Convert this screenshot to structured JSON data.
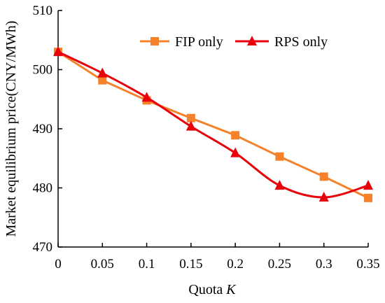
{
  "chart_data": {
    "type": "line",
    "title": "",
    "xlabel": "Quota ",
    "xlabel_italic": "K",
    "ylabel": "Market equilibrium price(CNY/MWh)",
    "x": [
      0,
      0.05,
      0.1,
      0.15,
      0.2,
      0.25,
      0.3,
      0.35
    ],
    "x_tick_labels": [
      "0",
      "0.05",
      "0.1",
      "0.15",
      "0.2",
      "0.25",
      "0.3",
      "0.35"
    ],
    "ylim": [
      470,
      510
    ],
    "y_ticks": [
      470,
      480,
      490,
      500,
      510
    ],
    "y_tick_labels": [
      "470",
      "480",
      "490",
      "500",
      "510"
    ],
    "grid": false,
    "legend_position": "top-right",
    "series": [
      {
        "name": "FIP only",
        "color": "#F5822A",
        "marker": "square",
        "smooth": false,
        "values": [
          503.0,
          498.2,
          494.8,
          491.8,
          488.9,
          485.3,
          481.9,
          478.3
        ]
      },
      {
        "name": "RPS only",
        "color": "#E8000B",
        "marker": "triangle",
        "smooth": true,
        "values": [
          503.0,
          499.4,
          495.3,
          490.4,
          485.9,
          480.4,
          478.4,
          480.4
        ]
      }
    ]
  }
}
